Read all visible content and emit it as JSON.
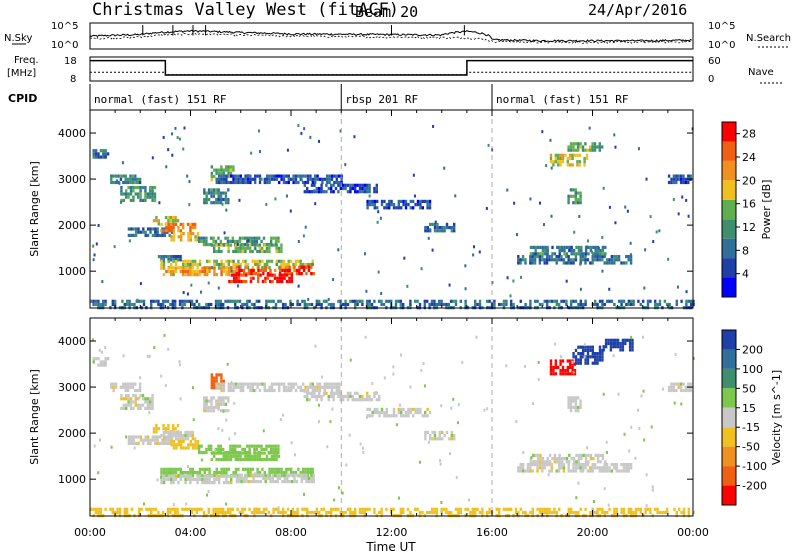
{
  "title": {
    "radar": "Christmas Valley West (fitACF)",
    "beam": "Beam 20",
    "date": "24/Apr/2016"
  },
  "top_panels": {
    "nsky_label": "N.Sky",
    "nsky_ticks": [
      "10^5",
      "10^0"
    ],
    "nsearch_label": "N.Search",
    "nsearch_ticks": [
      "10^5",
      "10^0"
    ],
    "freq_label_line1": "Freq.",
    "freq_label_line2": "[MHz]",
    "freq_ticks": [
      "18",
      "8"
    ],
    "nave_label": "Nave",
    "nave_ticks": [
      "60",
      "0"
    ],
    "cpid_label": "CPID"
  },
  "chart_data": [
    {
      "type": "line",
      "name": "N.Sky / N.Search",
      "x": [
        "00:00",
        "02:00",
        "04:00",
        "06:00",
        "08:00",
        "10:00",
        "12:00",
        "14:00",
        "15:00",
        "16:00",
        "18:00",
        "20:00",
        "22:00",
        "24:00"
      ],
      "series": [
        {
          "name": "N.Sky",
          "values": [
            300,
            600,
            3000,
            1500,
            800,
            700,
            600,
            500,
            2500,
            60,
            40,
            40,
            40,
            50
          ]
        },
        {
          "name": "N.Search",
          "values": [
            100,
            200,
            800,
            500,
            300,
            250,
            200,
            150,
            150,
            30,
            20,
            20,
            20,
            25
          ]
        }
      ],
      "ylim": [
        1,
        100000
      ],
      "log_scale": true
    },
    {
      "type": "line",
      "name": "Freq / Nave",
      "segments": [
        {
          "start": "00:00",
          "end": "03:00",
          "freq": 16.5,
          "nave": 22
        },
        {
          "start": "03:00",
          "end": "15:00",
          "freq": 10.5,
          "nave": 16
        },
        {
          "start": "15:00",
          "end": "24:00",
          "freq": 16.5,
          "nave": 22
        }
      ],
      "freq_ylim": [
        8,
        18
      ],
      "nave_ylim": [
        0,
        60
      ]
    },
    {
      "type": "table",
      "name": "CPID",
      "segments": [
        {
          "start": "00:00",
          "end": "10:00",
          "label": "normal (fast) 151 RF"
        },
        {
          "start": "10:00",
          "end": "16:00",
          "label": "rbsp 201 RF"
        },
        {
          "start": "16:00",
          "end": "24:00",
          "label": "normal (fast) 151 RF"
        }
      ]
    },
    {
      "type": "heatmap",
      "name": "Power",
      "ylabel": "Slant Range [km]",
      "yticks": [
        1000,
        2000,
        3000,
        4000
      ],
      "ylim": [
        200,
        4500
      ],
      "colorbar": {
        "label": "Power [dB]",
        "ticks": [
          4,
          8,
          12,
          16,
          20,
          24,
          28
        ],
        "range": [
          0,
          30
        ]
      },
      "patches": [
        {
          "t0": 0.1,
          "t1": 0.7,
          "r0": 3500,
          "r1": 3650,
          "v": 8
        },
        {
          "t0": 0.8,
          "t1": 2.0,
          "r0": 2900,
          "r1": 3100,
          "v": 10
        },
        {
          "t0": 1.2,
          "t1": 2.6,
          "r0": 2550,
          "r1": 2850,
          "v": 12
        },
        {
          "t0": 1.5,
          "t1": 3.3,
          "r0": 1750,
          "r1": 1950,
          "v": 8
        },
        {
          "t0": 2.5,
          "t1": 3.5,
          "r0": 2050,
          "r1": 2200,
          "v": 18
        },
        {
          "t0": 2.8,
          "t1": 4.2,
          "r0": 1850,
          "r1": 2050,
          "v": 22
        },
        {
          "t0": 3.2,
          "t1": 4.3,
          "r0": 1700,
          "r1": 1850,
          "v": 20
        },
        {
          "t0": 4.5,
          "t1": 5.5,
          "r0": 2500,
          "r1": 2800,
          "v": 10
        },
        {
          "t0": 4.8,
          "t1": 5.7,
          "r0": 3000,
          "r1": 3300,
          "v": 14
        },
        {
          "t0": 4.3,
          "t1": 7.5,
          "r0": 1600,
          "r1": 1750,
          "v": 12
        },
        {
          "t0": 4.8,
          "t1": 7.6,
          "r0": 1450,
          "r1": 1600,
          "v": 14
        },
        {
          "t0": 2.7,
          "t1": 3.6,
          "r0": 1250,
          "r1": 1350,
          "v": 8
        },
        {
          "t0": 2.8,
          "t1": 8.9,
          "r0": 1100,
          "r1": 1250,
          "v": 16
        },
        {
          "t0": 2.8,
          "t1": 5.8,
          "r0": 900,
          "r1": 1100,
          "v": 20
        },
        {
          "t0": 5.8,
          "t1": 8.9,
          "r0": 950,
          "r1": 1120,
          "v": 26
        },
        {
          "t0": 5.5,
          "t1": 8.0,
          "r0": 800,
          "r1": 950,
          "v": 28
        },
        {
          "t0": 5.0,
          "t1": 10.0,
          "r0": 2900,
          "r1": 3100,
          "v": 6
        },
        {
          "t0": 8.5,
          "t1": 11.5,
          "r0": 2700,
          "r1": 2900,
          "v": 6
        },
        {
          "t0": 11.0,
          "t1": 13.5,
          "r0": 2350,
          "r1": 2550,
          "v": 6
        },
        {
          "t0": 13.3,
          "t1": 14.5,
          "r0": 1850,
          "r1": 2050,
          "v": 8
        },
        {
          "t0": 17.0,
          "t1": 21.5,
          "r0": 1150,
          "r1": 1350,
          "v": 8
        },
        {
          "t0": 17.5,
          "t1": 20.5,
          "r0": 1350,
          "r1": 1550,
          "v": 10
        },
        {
          "t0": 18.3,
          "t1": 19.8,
          "r0": 3300,
          "r1": 3550,
          "v": 18
        },
        {
          "t0": 19.0,
          "t1": 20.4,
          "r0": 3600,
          "r1": 3800,
          "v": 14
        },
        {
          "t0": 19.0,
          "t1": 19.5,
          "r0": 2500,
          "r1": 2800,
          "v": 12
        },
        {
          "t0": 23.0,
          "t1": 23.9,
          "r0": 2900,
          "r1": 3100,
          "v": 6
        },
        {
          "t0": 0.0,
          "t1": 24.0,
          "r0": 200,
          "r1": 380,
          "v": 8
        }
      ]
    },
    {
      "type": "heatmap",
      "name": "Velocity",
      "ylabel": "Slant Range [km]",
      "yticks": [
        1000,
        2000,
        3000,
        4000
      ],
      "ylim": [
        200,
        4500
      ],
      "xlabel": "Time UT",
      "xticks": [
        "00:00",
        "04:00",
        "08:00",
        "12:00",
        "16:00",
        "20:00",
        "00:00"
      ],
      "colorbar": {
        "label": "Velocity [m s^-1]",
        "ticks": [
          "200",
          "100",
          "50",
          "15",
          "-15",
          "-50",
          "-100",
          "-200"
        ],
        "range": [
          -250,
          250
        ]
      },
      "patches": [
        {
          "t0": 0.1,
          "t1": 0.7,
          "r0": 3500,
          "r1": 3650,
          "v": 0
        },
        {
          "t0": 0.8,
          "t1": 2.0,
          "r0": 2900,
          "r1": 3100,
          "v": 0
        },
        {
          "t0": 1.2,
          "t1": 2.6,
          "r0": 2550,
          "r1": 2850,
          "v": 0
        },
        {
          "t0": 1.5,
          "t1": 3.3,
          "r0": 1750,
          "r1": 1950,
          "v": 0
        },
        {
          "t0": 2.5,
          "t1": 3.5,
          "r0": 2050,
          "r1": 2200,
          "v": -30
        },
        {
          "t0": 2.8,
          "t1": 4.2,
          "r0": 1850,
          "r1": 2050,
          "v": 5
        },
        {
          "t0": 3.2,
          "t1": 4.3,
          "r0": 1700,
          "r1": 1850,
          "v": -40
        },
        {
          "t0": 4.5,
          "t1": 5.5,
          "r0": 2500,
          "r1": 2800,
          "v": 0
        },
        {
          "t0": 4.8,
          "t1": 5.3,
          "r0": 3000,
          "r1": 3300,
          "v": -180
        },
        {
          "t0": 4.3,
          "t1": 7.5,
          "r0": 1600,
          "r1": 1750,
          "v": 40
        },
        {
          "t0": 4.8,
          "t1": 7.6,
          "r0": 1450,
          "r1": 1600,
          "v": 40
        },
        {
          "t0": 2.8,
          "t1": 8.9,
          "r0": 1100,
          "r1": 1250,
          "v": 30
        },
        {
          "t0": 2.8,
          "t1": 5.8,
          "r0": 900,
          "r1": 1100,
          "v": 0
        },
        {
          "t0": 5.8,
          "t1": 8.9,
          "r0": 950,
          "r1": 1120,
          "v": 0
        },
        {
          "t0": 5.0,
          "t1": 10.0,
          "r0": 2900,
          "r1": 3100,
          "v": 0
        },
        {
          "t0": 8.5,
          "t1": 11.5,
          "r0": 2700,
          "r1": 2900,
          "v": 0
        },
        {
          "t0": 11.0,
          "t1": 13.5,
          "r0": 2350,
          "r1": 2550,
          "v": 0
        },
        {
          "t0": 13.3,
          "t1": 14.5,
          "r0": 1850,
          "r1": 2050,
          "v": 0
        },
        {
          "t0": 17.0,
          "t1": 21.5,
          "r0": 1150,
          "r1": 1350,
          "v": 0
        },
        {
          "t0": 17.5,
          "t1": 20.5,
          "r0": 1350,
          "r1": 1550,
          "v": -10
        },
        {
          "t0": 18.3,
          "t1": 19.3,
          "r0": 3300,
          "r1": 3600,
          "v": -220
        },
        {
          "t0": 19.2,
          "t1": 20.4,
          "r0": 3550,
          "r1": 3900,
          "v": 200
        },
        {
          "t0": 20.4,
          "t1": 21.6,
          "r0": 3800,
          "r1": 4050,
          "v": 220
        },
        {
          "t0": 19.0,
          "t1": 19.5,
          "r0": 2500,
          "r1": 2800,
          "v": 0
        },
        {
          "t0": 23.0,
          "t1": 23.9,
          "r0": 2900,
          "r1": 3100,
          "v": 0
        },
        {
          "t0": 0.0,
          "t1": 24.0,
          "r0": 200,
          "r1": 380,
          "v": -30
        }
      ]
    }
  ]
}
